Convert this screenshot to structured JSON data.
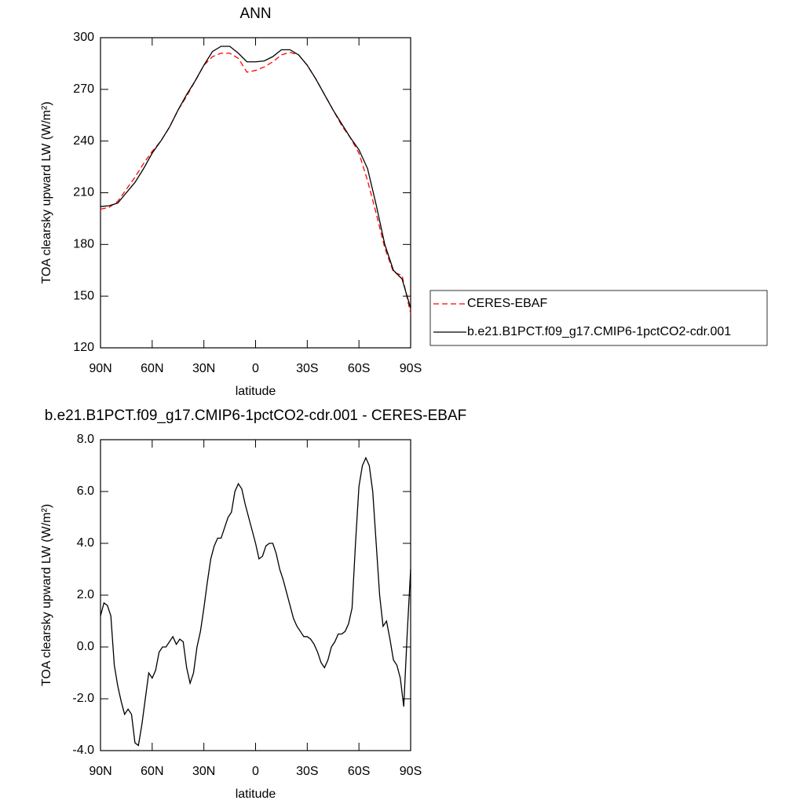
{
  "chart_data": [
    {
      "type": "line",
      "title": "ANN",
      "x_label": "latitude",
      "y_label": "TOA clearsky upward LW (W/m²)",
      "x": [
        90,
        85,
        80,
        75,
        70,
        65,
        60,
        55,
        50,
        45,
        40,
        35,
        30,
        25,
        20,
        15,
        10,
        5,
        0,
        -5,
        -10,
        -15,
        -20,
        -25,
        -30,
        -35,
        -40,
        -45,
        -50,
        -55,
        -60,
        -65,
        -70,
        -75,
        -80,
        -85,
        -90
      ],
      "series": [
        {
          "name": "CERES-EBAF",
          "color": "#ff0000",
          "line_style": "dashed",
          "values": [
            200.5,
            201.5,
            205,
            212,
            219,
            227,
            234,
            240,
            248,
            258,
            266,
            275,
            284,
            289,
            291,
            291,
            288,
            280,
            281,
            283,
            286,
            290,
            291.5,
            290,
            284,
            276,
            267,
            258,
            249,
            242,
            233,
            217,
            198,
            178,
            164,
            162,
            140
          ]
        },
        {
          "name": "b.e21.B1PCT.f09_g17.CMIP6-1pctCO2-cdr.001",
          "color": "#000000",
          "line_style": "solid",
          "values": [
            202,
            202.5,
            204,
            210,
            216,
            224,
            233,
            240,
            248,
            258,
            267,
            275,
            284,
            292,
            295,
            295,
            291,
            286,
            286,
            286.5,
            289,
            293,
            293,
            290,
            284,
            276,
            267,
            258,
            250,
            242,
            235,
            224,
            203,
            180,
            165,
            160,
            143
          ]
        }
      ],
      "xlim": [
        90,
        -90
      ],
      "xticks": [
        {
          "value": 90,
          "label": "90N"
        },
        {
          "value": 60,
          "label": "60N"
        },
        {
          "value": 30,
          "label": "30N"
        },
        0,
        {
          "value": -30,
          "label": "30S"
        },
        {
          "value": -60,
          "label": "60S"
        },
        {
          "value": -90,
          "label": "90S"
        }
      ],
      "ylim": [
        120,
        300
      ],
      "yticks": [
        120,
        150,
        180,
        210,
        240,
        270,
        300
      ],
      "legend": "right"
    },
    {
      "type": "line",
      "title": "b.e21.B1PCT.f09_g17.CMIP6-1pctCO2-cdr.001 - CERES-EBAF",
      "x_label": "latitude",
      "y_label": "TOA clearsky upward LW (W/m²)",
      "x": [
        90,
        88,
        86,
        84,
        82,
        80,
        78,
        76,
        74,
        72,
        70,
        68,
        66,
        64,
        62,
        60,
        58,
        56,
        54,
        52,
        50,
        48,
        46,
        44,
        42,
        40,
        38,
        36,
        34,
        32,
        30,
        28,
        26,
        24,
        22,
        20,
        18,
        16,
        14,
        12,
        10,
        8,
        6,
        4,
        2,
        0,
        -2,
        -4,
        -6,
        -8,
        -10,
        -12,
        -14,
        -16,
        -18,
        -20,
        -22,
        -24,
        -26,
        -28,
        -30,
        -32,
        -34,
        -36,
        -38,
        -40,
        -42,
        -44,
        -46,
        -48,
        -50,
        -52,
        -54,
        -56,
        -58,
        -60,
        -62,
        -64,
        -66,
        -68,
        -70,
        -72,
        -74,
        -76,
        -78,
        -80,
        -82,
        -84,
        -86,
        -88,
        -90
      ],
      "series": [
        {
          "color": "#000000",
          "line_style": "solid",
          "values": [
            1.2,
            1.7,
            1.6,
            1.2,
            -0.7,
            -1.5,
            -2.1,
            -2.6,
            -2.4,
            -2.6,
            -3.7,
            -3.8,
            -3.0,
            -2.0,
            -1.0,
            -1.2,
            -0.9,
            -0.2,
            0.0,
            0.0,
            0.2,
            0.4,
            0.1,
            0.3,
            0.2,
            -0.8,
            -1.4,
            -1.0,
            0.0,
            0.6,
            1.5,
            2.5,
            3.4,
            3.9,
            4.2,
            4.2,
            4.6,
            5.0,
            5.2,
            6.0,
            6.3,
            6.1,
            5.5,
            5.0,
            4.5,
            4.0,
            3.4,
            3.5,
            3.9,
            4.0,
            4.0,
            3.6,
            3.0,
            2.6,
            2.1,
            1.6,
            1.1,
            0.8,
            0.6,
            0.4,
            0.4,
            0.3,
            0.1,
            -0.2,
            -0.6,
            -0.8,
            -0.5,
            0.0,
            0.2,
            0.5,
            0.5,
            0.6,
            0.9,
            1.5,
            4.0,
            6.2,
            7.0,
            7.3,
            7.0,
            6.0,
            4.0,
            2.0,
            0.8,
            1.0,
            0.3,
            -0.5,
            -0.7,
            -1.2,
            -2.3,
            0.5,
            3.0
          ]
        }
      ],
      "xlim": [
        90,
        -90
      ],
      "xticks": [
        {
          "value": 90,
          "label": "90N"
        },
        {
          "value": 60,
          "label": "60N"
        },
        {
          "value": 30,
          "label": "30N"
        },
        0,
        {
          "value": -30,
          "label": "30S"
        },
        {
          "value": -60,
          "label": "60S"
        },
        {
          "value": -90,
          "label": "90S"
        }
      ],
      "ylim": [
        -4,
        8
      ],
      "yticks": [
        {
          "value": -4,
          "label": "-4.0"
        },
        {
          "value": -2,
          "label": "-2.0"
        },
        {
          "value": 0,
          "label": "0.0"
        },
        {
          "value": 2,
          "label": "2.0"
        },
        {
          "value": 4,
          "label": "4.0"
        },
        {
          "value": 6,
          "label": "6.0"
        },
        {
          "value": 8,
          "label": "8.0"
        }
      ]
    }
  ]
}
